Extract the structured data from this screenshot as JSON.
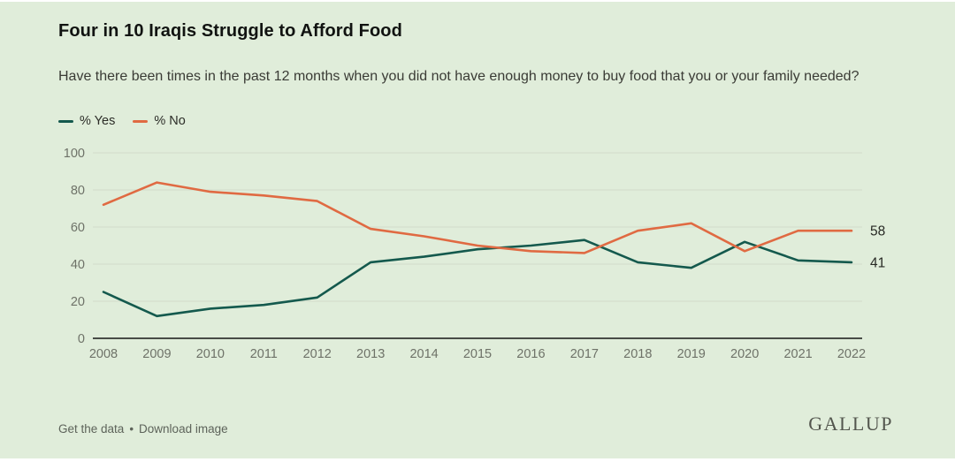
{
  "header": {
    "title": "Four in 10 Iraqis Struggle to Afford Food",
    "subtitle": "Have there been times in the past 12 months when you did not have enough money to buy food that you or your family needed?"
  },
  "legend": {
    "yes_label": "% Yes",
    "no_label": "% No"
  },
  "colors": {
    "background": "#e0edda",
    "yes_line": "#14594d",
    "no_line": "#e06a42",
    "gridline": "#d2dbca",
    "zero_axis": "#333530",
    "tick_text": "#6e7268",
    "value_label_text": "#262823"
  },
  "chart_data": {
    "type": "line",
    "title": "Four in 10 Iraqis Struggle to Afford Food",
    "x": [
      2008,
      2009,
      2010,
      2011,
      2012,
      2013,
      2014,
      2015,
      2016,
      2017,
      2018,
      2019,
      2020,
      2021,
      2022
    ],
    "series": [
      {
        "name": "% Yes",
        "color": "#14594d",
        "values": [
          25,
          12,
          16,
          18,
          22,
          41,
          44,
          48,
          50,
          53,
          41,
          38,
          52,
          42,
          41
        ],
        "end_label": "41"
      },
      {
        "name": "% No",
        "color": "#e06a42",
        "values": [
          72,
          84,
          79,
          77,
          74,
          59,
          55,
          50,
          47,
          46,
          58,
          62,
          47,
          58,
          58
        ],
        "end_label": "58"
      }
    ],
    "ylim": [
      0,
      100
    ],
    "yticks": [
      0,
      20,
      40,
      60,
      80,
      100
    ],
    "grid": true,
    "legend_position": "top-left",
    "xlabel": "",
    "ylabel": ""
  },
  "footer": {
    "link1": "Get the data",
    "separator": "•",
    "link2": "Download image",
    "brand": "GALLUP"
  }
}
